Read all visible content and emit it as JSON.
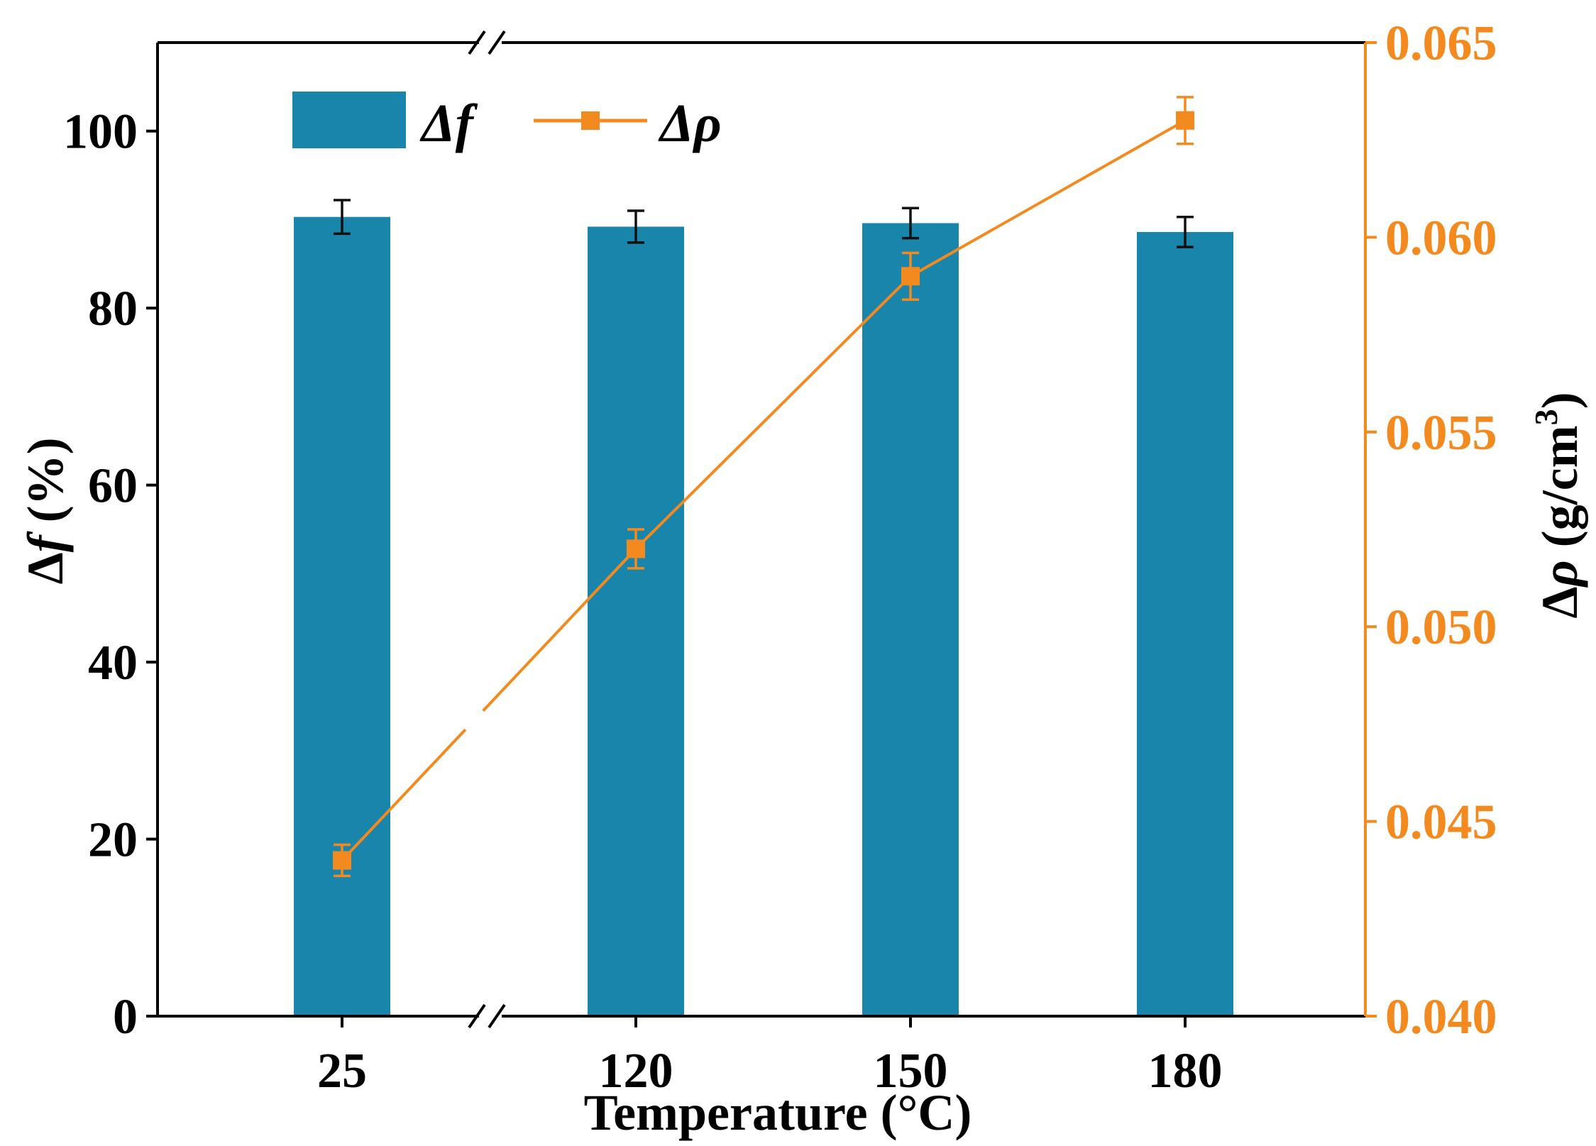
{
  "chart_data": {
    "type": "bar+line",
    "categories": [
      "25",
      "120",
      "150",
      "180"
    ],
    "xlabel": "Temperature (°C)",
    "x_axis_break": "between 25 and 120",
    "series": [
      {
        "name": "Δf",
        "kind": "bar",
        "axis": "left",
        "values": [
          90.3,
          89.2,
          89.6,
          88.6
        ],
        "errors": [
          1.9,
          1.8,
          1.7,
          1.7
        ],
        "color": "#1a85ab"
      },
      {
        "name": "Δρ",
        "kind": "line",
        "axis": "right",
        "marker": "square",
        "values": [
          0.044,
          0.052,
          0.059,
          0.063
        ],
        "errors": [
          0.0004,
          0.0005,
          0.0006,
          0.0006
        ],
        "color": "#f28a1f"
      }
    ],
    "yaxis_left": {
      "label_main": "Δ",
      "label_italic": "f",
      "label_unit": " (%)",
      "ylim": [
        0,
        110
      ],
      "ticks": [
        0,
        20,
        40,
        60,
        80,
        100
      ],
      "tick_labels": [
        "0",
        "20",
        "40",
        "60",
        "80",
        "100"
      ]
    },
    "yaxis_right": {
      "label_main": "Δ",
      "label_italic": "ρ",
      "label_unit": " (g/cm",
      "label_sup": "3",
      "label_close": ")",
      "ylim": [
        0.04,
        0.065
      ],
      "ticks": [
        0.04,
        0.045,
        0.05,
        0.055,
        0.06,
        0.065
      ],
      "tick_labels": [
        "0.040",
        "0.045",
        "0.050",
        "0.055",
        "0.060",
        "0.065"
      ],
      "color": "#f28a1f"
    },
    "legend": {
      "placement": "top-left",
      "entries": [
        "Δf",
        "Δρ"
      ]
    }
  }
}
